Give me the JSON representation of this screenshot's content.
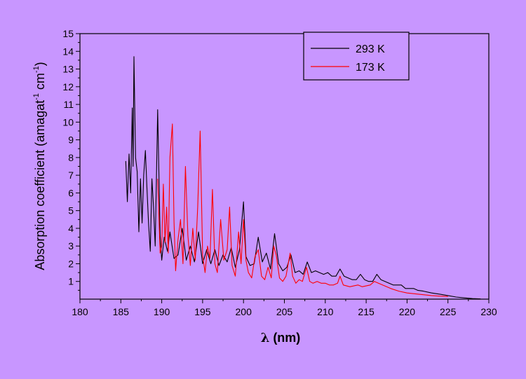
{
  "chart_data": {
    "type": "line",
    "title": "",
    "xlabel_symbol": "λ",
    "xlabel_rest": " (nm)",
    "ylabel_main": "Absorption coefficient (amagat",
    "ylabel_sup1": "-1",
    "ylabel_mid": " cm",
    "ylabel_sup2": "-1",
    "ylabel_end": ")",
    "xlim": [
      180,
      230
    ],
    "ylim": [
      0,
      15
    ],
    "x_ticks": [
      180,
      185,
      190,
      195,
      200,
      205,
      210,
      215,
      220,
      225,
      230
    ],
    "y_ticks": [
      1,
      2,
      3,
      4,
      5,
      6,
      7,
      8,
      9,
      10,
      11,
      12,
      13,
      14,
      15
    ],
    "grid": false,
    "legend_position": "top-right",
    "series": [
      {
        "name": "293 K",
        "color": "#000000",
        "points": [
          [
            185.6,
            7.8
          ],
          [
            185.8,
            5.5
          ],
          [
            186.0,
            8.2
          ],
          [
            186.2,
            6.0
          ],
          [
            186.4,
            10.8
          ],
          [
            186.5,
            7.5
          ],
          [
            186.6,
            13.7
          ],
          [
            186.8,
            8.0
          ],
          [
            187.0,
            7.2
          ],
          [
            187.2,
            3.8
          ],
          [
            187.4,
            6.8
          ],
          [
            187.6,
            4.3
          ],
          [
            187.8,
            7.0
          ],
          [
            188.0,
            8.4
          ],
          [
            188.2,
            6.2
          ],
          [
            188.4,
            4.2
          ],
          [
            188.6,
            2.7
          ],
          [
            188.8,
            6.8
          ],
          [
            189.0,
            5.2
          ],
          [
            189.2,
            3.0
          ],
          [
            189.5,
            10.7
          ],
          [
            189.8,
            3.6
          ],
          [
            190.0,
            2.2
          ],
          [
            190.3,
            3.5
          ],
          [
            190.7,
            2.7
          ],
          [
            191.0,
            3.8
          ],
          [
            191.5,
            2.3
          ],
          [
            192.0,
            2.5
          ],
          [
            192.5,
            4.0
          ],
          [
            193.0,
            2.2
          ],
          [
            193.5,
            3.0
          ],
          [
            194.0,
            2.1
          ],
          [
            194.5,
            3.8
          ],
          [
            195.0,
            2.0
          ],
          [
            195.5,
            2.8
          ],
          [
            196.0,
            2.0
          ],
          [
            196.5,
            2.8
          ],
          [
            197.0,
            1.9
          ],
          [
            197.5,
            2.5
          ],
          [
            198.0,
            2.1
          ],
          [
            198.5,
            2.9
          ],
          [
            199.0,
            1.8
          ],
          [
            199.5,
            2.8
          ],
          [
            200.0,
            5.5
          ],
          [
            200.3,
            2.4
          ],
          [
            200.8,
            1.9
          ],
          [
            201.3,
            2.0
          ],
          [
            201.8,
            3.5
          ],
          [
            202.3,
            2.1
          ],
          [
            202.8,
            2.6
          ],
          [
            203.3,
            1.7
          ],
          [
            203.8,
            3.7
          ],
          [
            204.3,
            2.0
          ],
          [
            204.8,
            1.6
          ],
          [
            205.3,
            1.8
          ],
          [
            205.8,
            2.5
          ],
          [
            206.3,
            1.5
          ],
          [
            206.8,
            1.6
          ],
          [
            207.3,
            1.4
          ],
          [
            207.8,
            2.1
          ],
          [
            208.3,
            1.5
          ],
          [
            208.8,
            1.6
          ],
          [
            209.3,
            1.5
          ],
          [
            209.8,
            1.4
          ],
          [
            210.3,
            1.5
          ],
          [
            210.8,
            1.3
          ],
          [
            211.3,
            1.3
          ],
          [
            211.8,
            1.7
          ],
          [
            212.3,
            1.3
          ],
          [
            212.8,
            1.2
          ],
          [
            213.3,
            1.1
          ],
          [
            213.8,
            1.1
          ],
          [
            214.3,
            1.4
          ],
          [
            214.8,
            1.1
          ],
          [
            215.3,
            1.0
          ],
          [
            215.8,
            1.0
          ],
          [
            216.3,
            1.4
          ],
          [
            216.8,
            1.1
          ],
          [
            217.3,
            1.0
          ],
          [
            217.8,
            0.9
          ],
          [
            218.3,
            0.8
          ],
          [
            218.8,
            0.8
          ],
          [
            219.3,
            0.8
          ],
          [
            219.8,
            0.6
          ],
          [
            220.3,
            0.6
          ],
          [
            220.8,
            0.6
          ],
          [
            221.3,
            0.5
          ],
          [
            222.0,
            0.45
          ],
          [
            223.0,
            0.35
          ],
          [
            224.0,
            0.28
          ],
          [
            225.0,
            0.2
          ],
          [
            226.0,
            0.12
          ],
          [
            227.0,
            0.07
          ],
          [
            228.0,
            0.03
          ],
          [
            229.0,
            0.01
          ]
        ]
      },
      {
        "name": "173 K",
        "color": "#ff0000",
        "points": [
          [
            189.5,
            6.8
          ],
          [
            189.8,
            2.6
          ],
          [
            190.0,
            3.0
          ],
          [
            190.2,
            6.5
          ],
          [
            190.4,
            3.2
          ],
          [
            190.6,
            5.2
          ],
          [
            190.8,
            2.6
          ],
          [
            191.0,
            8.0
          ],
          [
            191.3,
            9.9
          ],
          [
            191.5,
            4.4
          ],
          [
            191.7,
            1.6
          ],
          [
            192.0,
            3.4
          ],
          [
            192.3,
            4.5
          ],
          [
            192.6,
            2.0
          ],
          [
            192.9,
            7.5
          ],
          [
            193.2,
            3.6
          ],
          [
            193.5,
            1.9
          ],
          [
            193.8,
            4.0
          ],
          [
            194.1,
            2.2
          ],
          [
            194.4,
            5.2
          ],
          [
            194.7,
            9.5
          ],
          [
            195.0,
            2.5
          ],
          [
            195.3,
            1.5
          ],
          [
            195.6,
            3.0
          ],
          [
            195.9,
            2.3
          ],
          [
            196.2,
            6.2
          ],
          [
            196.5,
            2.0
          ],
          [
            196.8,
            1.5
          ],
          [
            197.2,
            4.5
          ],
          [
            197.6,
            2.2
          ],
          [
            198.0,
            2.8
          ],
          [
            198.3,
            5.2
          ],
          [
            198.6,
            1.9
          ],
          [
            199.0,
            1.3
          ],
          [
            199.4,
            3.8
          ],
          [
            199.7,
            2.0
          ],
          [
            200.0,
            4.5
          ],
          [
            200.3,
            2.2
          ],
          [
            200.6,
            1.5
          ],
          [
            201.0,
            1.2
          ],
          [
            201.4,
            2.4
          ],
          [
            201.8,
            2.8
          ],
          [
            202.2,
            1.3
          ],
          [
            202.6,
            1.1
          ],
          [
            203.0,
            1.8
          ],
          [
            203.4,
            1.2
          ],
          [
            203.7,
            3.0
          ],
          [
            204.0,
            2.5
          ],
          [
            204.4,
            1.2
          ],
          [
            204.8,
            1.0
          ],
          [
            205.2,
            1.3
          ],
          [
            205.7,
            2.6
          ],
          [
            206.0,
            1.3
          ],
          [
            206.4,
            0.9
          ],
          [
            206.8,
            1.1
          ],
          [
            207.2,
            1.0
          ],
          [
            207.7,
            1.8
          ],
          [
            208.1,
            1.0
          ],
          [
            208.5,
            0.9
          ],
          [
            209.0,
            1.0
          ],
          [
            209.5,
            0.9
          ],
          [
            210.0,
            0.9
          ],
          [
            210.5,
            0.8
          ],
          [
            211.0,
            0.8
          ],
          [
            211.5,
            0.9
          ],
          [
            211.8,
            1.3
          ],
          [
            212.2,
            0.8
          ],
          [
            213.0,
            0.7
          ],
          [
            214.0,
            0.8
          ],
          [
            214.5,
            0.7
          ],
          [
            215.5,
            0.8
          ],
          [
            216.0,
            1.0
          ],
          [
            216.5,
            0.9
          ],
          [
            217.0,
            0.8
          ],
          [
            218.0,
            0.6
          ],
          [
            219.0,
            0.45
          ],
          [
            220.0,
            0.35
          ],
          [
            221.0,
            0.3
          ],
          [
            222.0,
            0.25
          ],
          [
            223.0,
            0.2
          ],
          [
            224.0,
            0.17
          ],
          [
            225.0,
            0.15
          ]
        ]
      }
    ]
  }
}
